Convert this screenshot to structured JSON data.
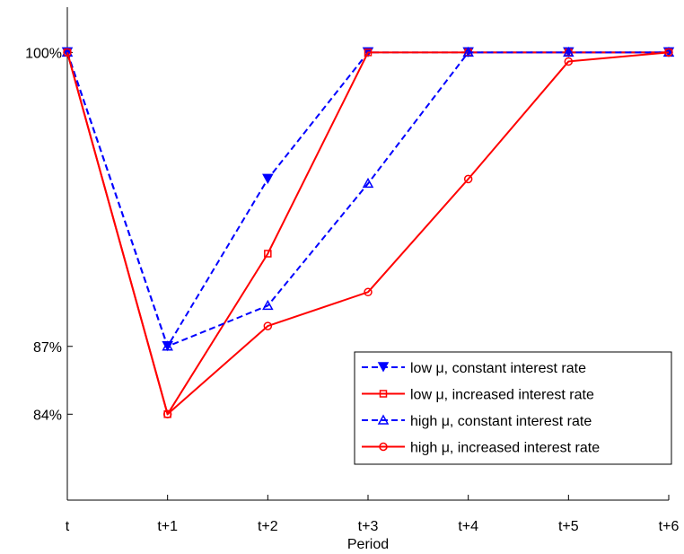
{
  "chart_data": {
    "type": "line",
    "xlabel": "Period",
    "ylabel": "",
    "categories": [
      "t",
      "t+1",
      "t+2",
      "t+3",
      "t+4",
      "t+5",
      "t+6"
    ],
    "y_ticks": [
      {
        "value": 100,
        "label": "100%"
      },
      {
        "value": 87,
        "label": "87%"
      },
      {
        "value": 84,
        "label": "84%"
      }
    ],
    "ylim": [
      80.2,
      102.0
    ],
    "grid": false,
    "legend_position": "bottom-right",
    "series": [
      {
        "name": "low μ, constant interest rate",
        "values": [
          100,
          87.0,
          94.4,
          100,
          100,
          100,
          100
        ],
        "color": "#0000ff",
        "dash": "dashed",
        "marker": "triangle-down",
        "marker_fill": "filled"
      },
      {
        "name": "low μ, increased interest rate",
        "values": [
          100,
          84.0,
          91.1,
          100,
          100,
          100,
          100
        ],
        "color": "#ff0000",
        "dash": "solid",
        "marker": "square",
        "marker_fill": "hollow"
      },
      {
        "name": "high μ, constant interest rate",
        "values": [
          100,
          87.0,
          88.8,
          94.2,
          100,
          100,
          100
        ],
        "color": "#0000ff",
        "dash": "dashed",
        "marker": "triangle-up",
        "marker_fill": "hollow"
      },
      {
        "name": "high μ, increased interest rate",
        "values": [
          100,
          84.0,
          87.9,
          89.4,
          94.4,
          99.6,
          100
        ],
        "color": "#ff0000",
        "dash": "solid",
        "marker": "circle",
        "marker_fill": "hollow"
      }
    ]
  }
}
